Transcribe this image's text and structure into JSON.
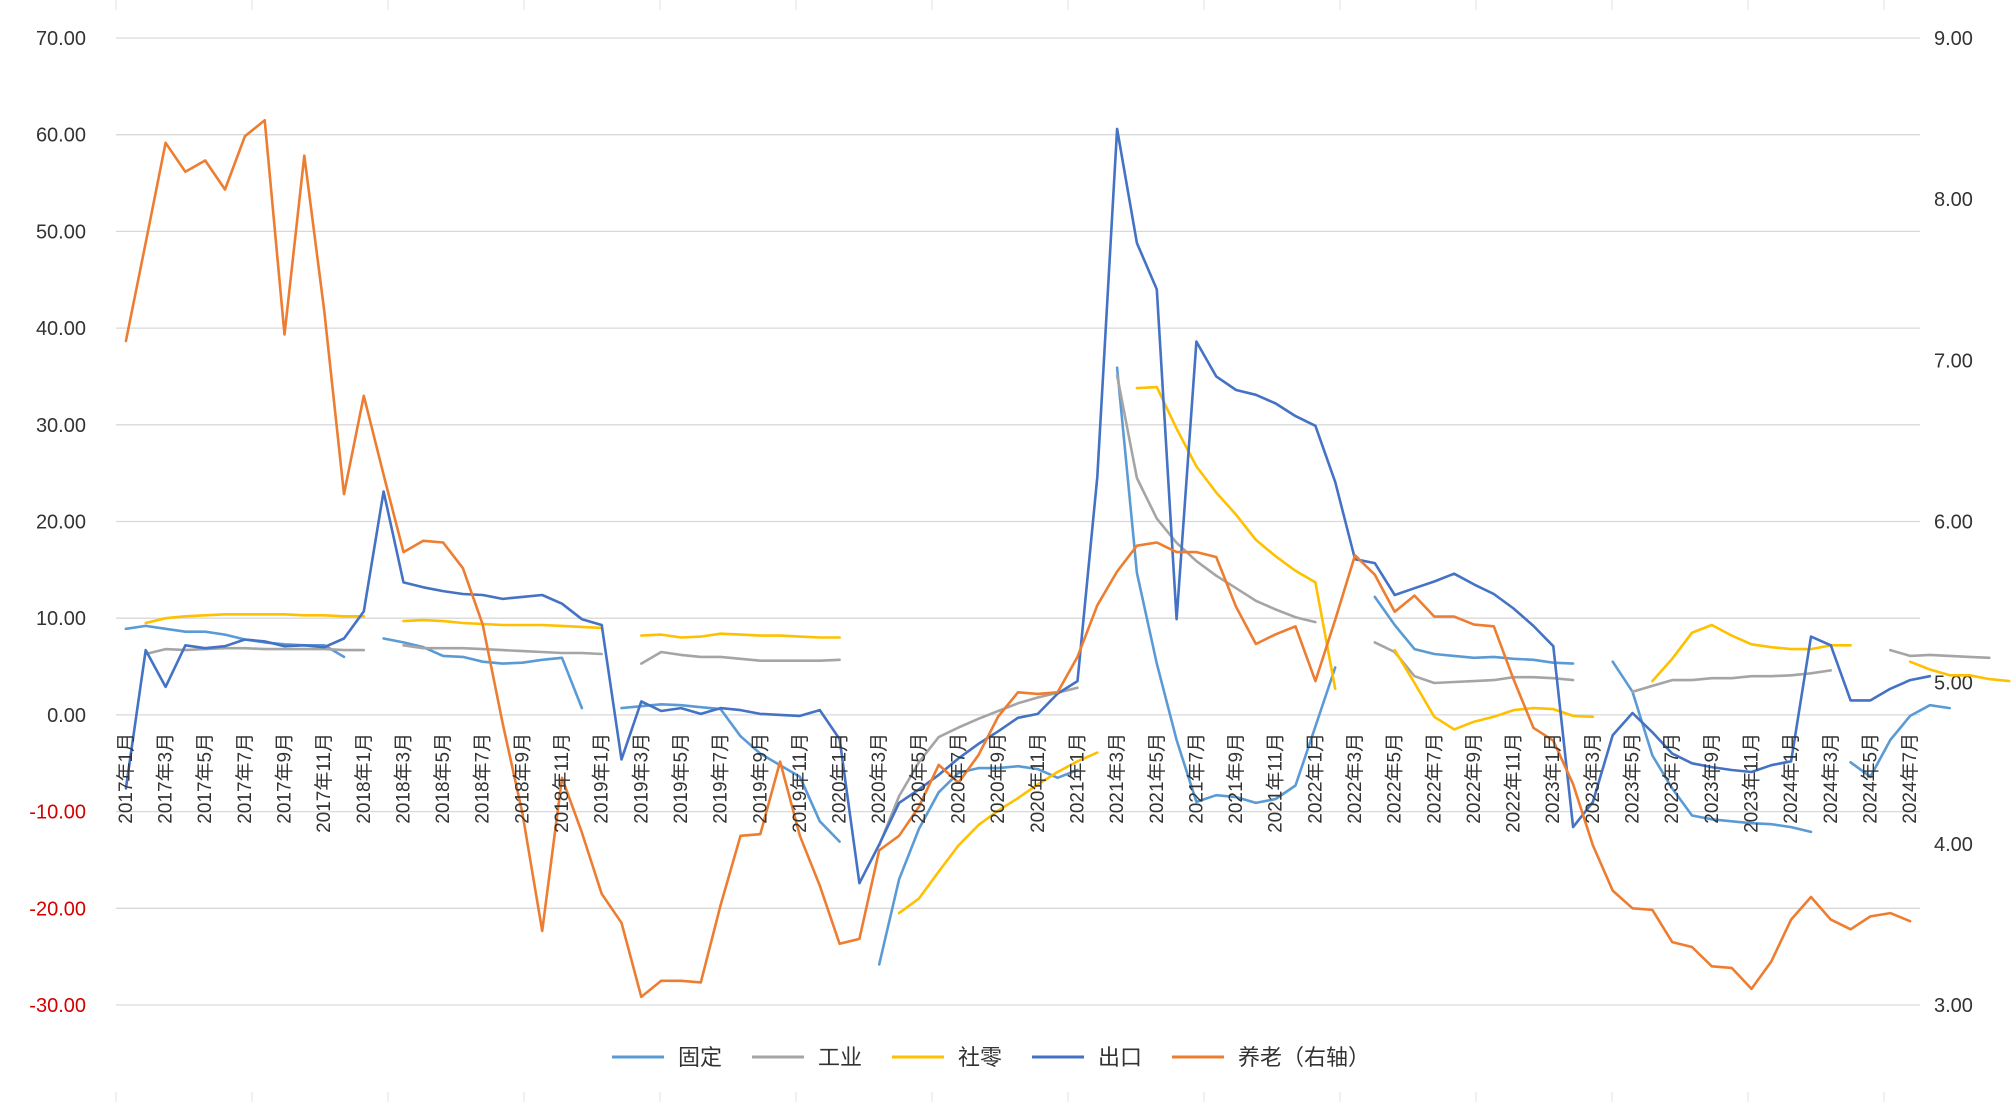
{
  "chart_data": {
    "type": "line",
    "title": "",
    "xlabel": "",
    "ylabel": "",
    "y_left": {
      "min": -30,
      "max": 70,
      "step": 10,
      "tick_labels": [
        "-30.00",
        "-20.00",
        "-10.00",
        "0.00",
        "10.00",
        "20.00",
        "30.00",
        "40.00",
        "50.00",
        "60.00",
        "70.00"
      ],
      "negative_label_color": "#d40000"
    },
    "y_right": {
      "min": 3,
      "max": 9,
      "step": 1,
      "tick_labels": [
        "3.00",
        "4.00",
        "5.00",
        "6.00",
        "7.00",
        "8.00",
        "9.00"
      ]
    },
    "grid": true,
    "legend_position": "bottom",
    "x_tick_labels": [
      "2017年1月",
      "2017年3月",
      "2017年5月",
      "2017年7月",
      "2017年9月",
      "2017年11月",
      "2018年1月",
      "2018年3月",
      "2018年5月",
      "2018年7月",
      "2018年9月",
      "2018年11月",
      "2019年1月",
      "2019年3月",
      "2019年5月",
      "2019年7月",
      "2019年9月",
      "2019年11月",
      "2020年1月",
      "2020年3月",
      "2020年5月",
      "2020年7月",
      "2020年9月",
      "2020年11月",
      "2021年1月",
      "2021年3月",
      "2021年5月",
      "2021年7月",
      "2021年9月",
      "2021年11月",
      "2022年1月",
      "2022年3月",
      "2022年5月",
      "2022年7月",
      "2022年9月",
      "2022年11月",
      "2023年1月",
      "2023年3月",
      "2023年5月",
      "2023年7月",
      "2023年9月",
      "2023年11月",
      "2024年1月",
      "2024年3月",
      "2024年5月",
      "2024年7月"
    ],
    "series": [
      {
        "name": "固定",
        "axis": "left",
        "color": "#5b9bd5",
        "values": [
          null,
          8.9,
          9.2,
          8.9,
          8.6,
          8.6,
          8.3,
          7.8,
          7.5,
          7.3,
          7.2,
          7.2,
          6.0,
          null,
          7.9,
          7.5,
          7.0,
          6.1,
          6.0,
          5.5,
          5.3,
          5.4,
          5.7,
          5.9,
          0.7,
          null,
          0.7,
          0.9,
          1.1,
          1.0,
          0.8,
          0.6,
          -2.2,
          -4.0,
          -5.2,
          -6.4,
          -11.0,
          -13.1,
          null,
          -25.8,
          -17.0,
          -11.8,
          -8.0,
          -6.0,
          -5.5,
          -5.5,
          -5.3,
          -5.6,
          -6.5,
          -5.7,
          null,
          35.9,
          14.7,
          5.3,
          -2.6,
          -9.0,
          -8.3,
          -8.5,
          -9.1,
          -8.7,
          -7.3,
          -1.2,
          4.9,
          null,
          12.2,
          9.3,
          6.8,
          6.3,
          6.1,
          5.9,
          6.0,
          5.8,
          5.7,
          5.4,
          5.3,
          null,
          5.5,
          2.4,
          -4.2,
          -7.6,
          -10.4,
          -10.8,
          -11.0,
          -11.2,
          -11.3,
          -11.6,
          -12.1,
          null,
          -4.9,
          -6.4,
          -2.6,
          -0.1,
          1.0,
          0.7
        ],
        "index_offset": -1
      },
      {
        "name": "工业",
        "axis": "left",
        "color": "#a5a5a5",
        "values": [
          null,
          6.3,
          6.8,
          6.7,
          6.8,
          6.9,
          6.9,
          6.8,
          6.8,
          6.8,
          6.8,
          6.7,
          6.7,
          null,
          7.2,
          6.9,
          6.9,
          6.9,
          6.8,
          6.7,
          6.6,
          6.5,
          6.4,
          6.4,
          6.3,
          null,
          5.3,
          6.5,
          6.2,
          6.0,
          6.0,
          5.8,
          5.6,
          5.6,
          5.6,
          5.6,
          5.7,
          null,
          -13.5,
          -8.4,
          -4.9,
          -2.3,
          -1.3,
          -0.4,
          0.4,
          1.2,
          1.8,
          2.3,
          2.8,
          null,
          35.1,
          24.5,
          20.3,
          17.8,
          15.9,
          14.4,
          13.1,
          11.8,
          10.9,
          10.1,
          9.6,
          null,
          null,
          7.5,
          6.5,
          4.0,
          3.3,
          3.4,
          3.5,
          3.6,
          3.9,
          3.9,
          3.8,
          3.6,
          null,
          null,
          2.4,
          3.0,
          3.6,
          3.6,
          3.8,
          3.8,
          4.0,
          4.0,
          4.1,
          4.3,
          4.6,
          null,
          null,
          6.7,
          6.1,
          6.2,
          6.1,
          6.0,
          5.9
        ]
      },
      {
        "name": "社零",
        "axis": "left",
        "color": "#ffc000",
        "values": [
          null,
          9.5,
          10.0,
          10.2,
          10.3,
          10.4,
          10.4,
          10.4,
          10.4,
          10.3,
          10.3,
          10.2,
          10.2,
          null,
          9.7,
          9.8,
          9.7,
          9.5,
          9.4,
          9.3,
          9.3,
          9.3,
          9.2,
          9.1,
          9.0,
          null,
          8.2,
          8.3,
          8.0,
          8.1,
          8.4,
          8.3,
          8.2,
          8.2,
          8.1,
          8.0,
          8.0,
          null,
          null,
          -20.5,
          -19.0,
          -16.2,
          -13.5,
          -11.4,
          -9.9,
          -8.6,
          -7.2,
          -5.9,
          -4.8,
          -3.9,
          null,
          33.8,
          33.9,
          29.6,
          25.7,
          23.0,
          20.7,
          18.1,
          16.4,
          14.9,
          13.7,
          2.7,
          null,
          null,
          6.7,
          3.3,
          -0.2,
          -1.5,
          -0.7,
          -0.2,
          0.5,
          0.7,
          0.6,
          -0.1,
          -0.2,
          null,
          null,
          3.5,
          5.8,
          8.5,
          9.3,
          8.2,
          7.3,
          7.0,
          6.8,
          6.8,
          7.2,
          7.2,
          null,
          null,
          5.5,
          4.7,
          4.1,
          4.1,
          3.7,
          3.5
        ]
      },
      {
        "name": "出口",
        "axis": "left",
        "color": "#4472c4",
        "values": [
          -7.6,
          6.7,
          2.9,
          7.2,
          6.9,
          7.1,
          7.8,
          7.6,
          7.1,
          7.2,
          7.0,
          7.9,
          10.7,
          23.1,
          13.7,
          13.2,
          12.8,
          12.5,
          12.4,
          12.0,
          12.2,
          12.4,
          11.5,
          9.9,
          9.3,
          -4.6,
          1.4,
          0.4,
          0.7,
          0.1,
          0.7,
          0.5,
          0.1,
          0.0,
          -0.1,
          0.5,
          -2.5,
          -17.4,
          -13.4,
          -9.1,
          -7.7,
          -6.2,
          -4.5,
          -3.0,
          -1.7,
          -0.3,
          0.1,
          2.2,
          3.5,
          24.6,
          60.6,
          48.8,
          44.0,
          9.9,
          38.6,
          35.0,
          33.6,
          33.1,
          32.2,
          30.9,
          29.9,
          24.1,
          16.1,
          15.7,
          12.4,
          13.1,
          13.8,
          14.6,
          13.5,
          12.5,
          11.0,
          9.2,
          7.1,
          -11.6,
          -9.0,
          -2.1,
          0.2,
          -1.8,
          -4.0,
          -5.0,
          -5.4,
          -5.7,
          -5.9,
          -5.2,
          -4.8,
          8.1,
          7.2,
          1.5,
          1.5,
          2.7,
          3.6,
          4.0
        ]
      },
      {
        "name": "养老（右轴）",
        "axis": "right",
        "color": "#ed7d31",
        "values": [
          7.12,
          7.73,
          8.35,
          8.17,
          8.24,
          8.06,
          8.39,
          8.49,
          7.16,
          8.27,
          7.31,
          6.17,
          6.78,
          6.29,
          5.81,
          5.88,
          5.87,
          5.71,
          5.36,
          4.75,
          4.19,
          3.46,
          4.41,
          4.07,
          3.69,
          3.51,
          3.05,
          3.15,
          3.15,
          3.14,
          3.62,
          4.05,
          4.06,
          4.51,
          4.05,
          3.74,
          3.38,
          3.41,
          3.96,
          4.05,
          4.23,
          4.49,
          4.38,
          4.55,
          4.79,
          4.94,
          4.93,
          4.94,
          5.16,
          5.48,
          5.69,
          5.85,
          5.87,
          5.81,
          5.81,
          5.78,
          5.47,
          5.24,
          5.3,
          5.35,
          5.01,
          5.39,
          5.79,
          5.67,
          5.44,
          5.54,
          5.41,
          5.41,
          5.36,
          5.35,
          5.02,
          4.72,
          4.64,
          4.37,
          3.99,
          3.71,
          3.6,
          3.59,
          3.39,
          3.36,
          3.24,
          3.23,
          3.1,
          3.27,
          3.53,
          3.67,
          3.53,
          3.47,
          3.55,
          3.57,
          3.52
        ]
      }
    ]
  }
}
